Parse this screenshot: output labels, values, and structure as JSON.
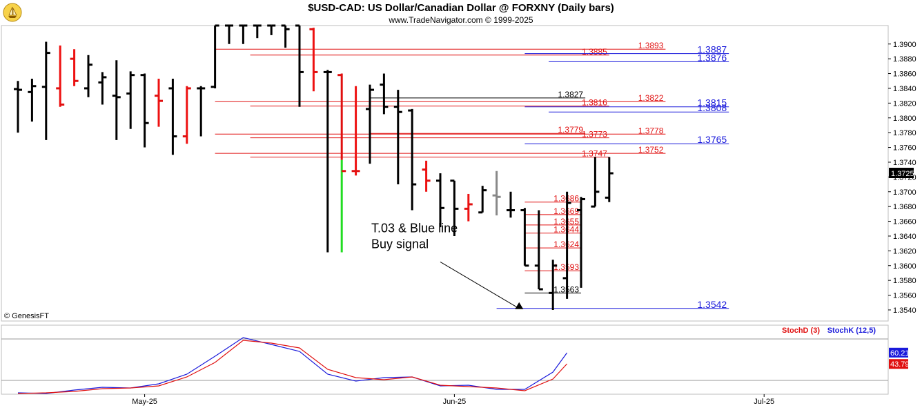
{
  "header": {
    "title": "$USD-CAD:  US Dollar/Canadian Dollar @ FORXNY  (Daily bars)",
    "subtitle": "www.TradeNavigator.com © 1999-2025"
  },
  "watermark": "© GenesisFT",
  "colors": {
    "up": "#000000",
    "down": "#ee1111",
    "blue": "#1a1adb",
    "red": "#e01010",
    "green": "#22dd22",
    "gray": "#888888"
  },
  "chart_data": [
    {
      "type": "ohlc",
      "ylim": [
        1.3525,
        1.3925
      ],
      "y_ticks": [
        "1.3540",
        "1.3560",
        "1.3580",
        "1.3600",
        "1.3620",
        "1.3640",
        "1.3660",
        "1.3680",
        "1.3700",
        "1.3720",
        "1.3740",
        "1.3760",
        "1.3780",
        "1.3800",
        "1.3820",
        "1.3840",
        "1.3860",
        "1.3880",
        "1.3900"
      ],
      "x_labels": [
        {
          "label": "May-25",
          "at": 9
        },
        {
          "label": "Jun-25",
          "at": 31
        },
        {
          "label": "Jul-25",
          "at": 53
        }
      ],
      "current_price_label": "1.3725",
      "bars": [
        {
          "o": 1.3839,
          "h": 1.385,
          "l": 1.378,
          "c": 1.3838,
          "col": "up"
        },
        {
          "o": 1.3835,
          "h": 1.3853,
          "l": 1.3795,
          "c": 1.3843,
          "col": "up"
        },
        {
          "o": 1.3842,
          "h": 1.3903,
          "l": 1.377,
          "c": 1.3888,
          "col": "up"
        },
        {
          "o": 1.384,
          "h": 1.3898,
          "l": 1.3815,
          "c": 1.3818,
          "col": "down"
        },
        {
          "o": 1.388,
          "h": 1.3893,
          "l": 1.3843,
          "c": 1.385,
          "col": "down"
        },
        {
          "o": 1.384,
          "h": 1.3885,
          "l": 1.3828,
          "c": 1.3872,
          "col": "up"
        },
        {
          "o": 1.3848,
          "h": 1.3862,
          "l": 1.3818,
          "c": 1.3855,
          "col": "up"
        },
        {
          "o": 1.383,
          "h": 1.3878,
          "l": 1.377,
          "c": 1.3828,
          "col": "up"
        },
        {
          "o": 1.3833,
          "h": 1.3863,
          "l": 1.3785,
          "c": 1.3858,
          "col": "up"
        },
        {
          "o": 1.3858,
          "h": 1.386,
          "l": 1.376,
          "c": 1.3793,
          "col": "up"
        },
        {
          "o": 1.383,
          "h": 1.3853,
          "l": 1.3788,
          "c": 1.3823,
          "col": "down"
        },
        {
          "o": 1.384,
          "h": 1.3853,
          "l": 1.375,
          "c": 1.3775,
          "col": "up"
        },
        {
          "o": 1.3775,
          "h": 1.3843,
          "l": 1.3765,
          "c": 1.384,
          "col": "down"
        },
        {
          "o": 1.384,
          "h": 1.3843,
          "l": 1.3775,
          "c": 1.384,
          "col": "up"
        },
        {
          "o": 1.3842,
          "h": 1.3925,
          "l": 1.384,
          "c": 1.3925,
          "col": "up"
        },
        {
          "o": 1.3925,
          "h": 1.3925,
          "l": 1.39,
          "c": 1.3925,
          "col": "up"
        },
        {
          "o": 1.3925,
          "h": 1.3925,
          "l": 1.39,
          "c": 1.3925,
          "col": "up"
        },
        {
          "o": 1.3925,
          "h": 1.3925,
          "l": 1.3908,
          "c": 1.3925,
          "col": "up"
        },
        {
          "o": 1.3925,
          "h": 1.3925,
          "l": 1.3912,
          "c": 1.3925,
          "col": "up"
        },
        {
          "o": 1.3925,
          "h": 1.3925,
          "l": 1.3895,
          "c": 1.392,
          "col": "up"
        },
        {
          "o": 1.3925,
          "h": 1.3925,
          "l": 1.3815,
          "c": 1.3862,
          "col": "up"
        },
        {
          "o": 1.392,
          "h": 1.3922,
          "l": 1.3836,
          "c": 1.3862,
          "col": "down"
        },
        {
          "o": 1.3862,
          "h": 1.3865,
          "l": 1.3618,
          "c": 1.3862,
          "col": "up"
        },
        {
          "o": 1.3858,
          "h": 1.386,
          "l": 1.3618,
          "c": 1.3728,
          "col": "green_red"
        },
        {
          "o": 1.3728,
          "h": 1.3843,
          "l": 1.3722,
          "c": 1.3728,
          "col": "down"
        },
        {
          "o": 1.3812,
          "h": 1.3845,
          "l": 1.3738,
          "c": 1.3838,
          "col": "up"
        },
        {
          "o": 1.3845,
          "h": 1.386,
          "l": 1.3805,
          "c": 1.3815,
          "col": "up"
        },
        {
          "o": 1.3815,
          "h": 1.3838,
          "l": 1.371,
          "c": 1.3808,
          "col": "up"
        },
        {
          "o": 1.381,
          "h": 1.3812,
          "l": 1.3675,
          "c": 1.371,
          "col": "up"
        },
        {
          "o": 1.373,
          "h": 1.3742,
          "l": 1.37,
          "c": 1.3715,
          "col": "down"
        },
        {
          "o": 1.3715,
          "h": 1.3725,
          "l": 1.3652,
          "c": 1.3678,
          "col": "up"
        },
        {
          "o": 1.3715,
          "h": 1.3715,
          "l": 1.364,
          "c": 1.3677,
          "col": "up"
        },
        {
          "o": 1.3677,
          "h": 1.3697,
          "l": 1.366,
          "c": 1.3683,
          "col": "down"
        },
        {
          "o": 1.3672,
          "h": 1.3708,
          "l": 1.3672,
          "c": 1.3702,
          "col": "up"
        },
        {
          "o": 1.3695,
          "h": 1.3728,
          "l": 1.3668,
          "c": 1.3693,
          "col": "gray"
        },
        {
          "o": 1.3675,
          "h": 1.37,
          "l": 1.3665,
          "c": 1.3675,
          "col": "up"
        },
        {
          "o": 1.3675,
          "h": 1.3678,
          "l": 1.36,
          "c": 1.36,
          "col": "up"
        },
        {
          "o": 1.36,
          "h": 1.3675,
          "l": 1.3568,
          "c": 1.3568,
          "col": "up"
        },
        {
          "o": 1.3563,
          "h": 1.3608,
          "l": 1.354,
          "c": 1.36,
          "col": "up"
        },
        {
          "o": 1.3583,
          "h": 1.37,
          "l": 1.3555,
          "c": 1.3685,
          "col": "up"
        },
        {
          "o": 1.3675,
          "h": 1.3693,
          "l": 1.357,
          "c": 1.369,
          "col": "up"
        },
        {
          "o": 1.368,
          "h": 1.3747,
          "l": 1.368,
          "c": 1.37,
          "col": "up"
        },
        {
          "o": 1.3692,
          "h": 1.3747,
          "l": 1.3686,
          "c": 1.3725,
          "col": "up"
        }
      ],
      "levels": [
        {
          "label": "1.3893",
          "y": 1.3893,
          "color": "red",
          "x0": 14,
          "x1": 46,
          "size": 12
        },
        {
          "label": "1.3885",
          "y": 1.3885,
          "color": "red",
          "x0": 16.5,
          "x1": 42,
          "size": 12
        },
        {
          "label": "1.3887",
          "y": 1.3887,
          "color": "blue",
          "x0": 36,
          "x1": 50.5,
          "size": 14
        },
        {
          "label": "1.3876",
          "y": 1.3876,
          "color": "blue",
          "x0": 37.7,
          "x1": 50.5,
          "size": 14
        },
        {
          "label": "1.3827",
          "y": 1.3827,
          "color": "black",
          "x0": 25,
          "x1": 40.3,
          "size": 12
        },
        {
          "label": "1.3822",
          "y": 1.3822,
          "color": "red",
          "x0": 14,
          "x1": 46,
          "size": 12
        },
        {
          "label": "1.3816",
          "y": 1.3816,
          "color": "red",
          "x0": 16.5,
          "x1": 42,
          "size": 12
        },
        {
          "label": "1.3815",
          "y": 1.3815,
          "color": "blue",
          "x0": 36,
          "x1": 50.5,
          "size": 14
        },
        {
          "label": "1.3808",
          "y": 1.3808,
          "color": "blue",
          "x0": 37.7,
          "x1": 50.5,
          "size": 14
        },
        {
          "label": "1.3779",
          "y": 1.3779,
          "color": "red",
          "x0": 25,
          "x1": 40.3,
          "size": 12
        },
        {
          "label": "1.3778",
          "y": 1.3778,
          "color": "red",
          "x0": 14,
          "x1": 46,
          "size": 12
        },
        {
          "label": "1.3773",
          "y": 1.3773,
          "color": "red",
          "x0": 16.5,
          "x1": 42,
          "size": 12
        },
        {
          "label": "1.3765",
          "y": 1.3765,
          "color": "blue",
          "x0": 36,
          "x1": 50.5,
          "size": 14
        },
        {
          "label": "1.3752",
          "y": 1.3752,
          "color": "red",
          "x0": 14,
          "x1": 46,
          "size": 12
        },
        {
          "label": "1.3747",
          "y": 1.3747,
          "color": "red",
          "x0": 16.5,
          "x1": 42,
          "size": 12
        },
        {
          "label": "1.3686",
          "y": 1.3686,
          "color": "red",
          "x0": 36,
          "x1": 40,
          "size": 12
        },
        {
          "label": "1.3669",
          "y": 1.3669,
          "color": "red",
          "x0": 36,
          "x1": 40,
          "size": 12
        },
        {
          "label": "1.3655",
          "y": 1.3655,
          "color": "red",
          "x0": 36,
          "x1": 40,
          "size": 12
        },
        {
          "label": "1.3644",
          "y": 1.3644,
          "color": "red",
          "x0": 36,
          "x1": 40,
          "size": 12
        },
        {
          "label": "1.3624",
          "y": 1.3624,
          "color": "red",
          "x0": 36,
          "x1": 40,
          "size": 12
        },
        {
          "label": "1.3593",
          "y": 1.3593,
          "color": "red",
          "x0": 36,
          "x1": 40,
          "size": 12
        },
        {
          "label": "1.3563",
          "y": 1.3563,
          "color": "black",
          "x0": 36,
          "x1": 40,
          "size": 12
        },
        {
          "label": "1.3542",
          "y": 1.3542,
          "color": "blue",
          "x0": 34,
          "x1": 50.5,
          "size": 14
        }
      ],
      "annotation": {
        "lines": [
          "T.03 & Blue line",
          "Buy signal"
        ],
        "text_x": 25.1,
        "text_y": 1.3645,
        "arrow_from": [
          30,
          1.3605
        ],
        "arrow_to": [
          35.6,
          1.3542
        ]
      }
    },
    {
      "type": "line",
      "legend": [
        {
          "name": "StochD (3)",
          "color": "red"
        },
        {
          "name": "StochK (12,5)",
          "color": "blue"
        }
      ],
      "ylim": [
        0,
        100
      ],
      "value_labels": [
        {
          "label": "60.21",
          "series": "StochK (12,5)",
          "y": 60.21
        },
        {
          "label": "43.79",
          "series": "StochD (3)",
          "y": 43.79
        }
      ],
      "series": [
        {
          "name": "StochK (12,5)",
          "color": "blue",
          "x": [
            0,
            2,
            4,
            6,
            8,
            10,
            12,
            14,
            16,
            18,
            20,
            22,
            24,
            26,
            28,
            30,
            32,
            34,
            36,
            38,
            39
          ],
          "y": [
            2,
            1,
            6,
            10,
            9,
            15,
            29,
            55,
            82,
            72,
            62,
            29,
            19,
            24,
            25,
            12,
            13,
            7,
            7,
            32,
            60
          ]
        },
        {
          "name": "StochD (3)",
          "color": "red",
          "x": [
            0,
            2,
            4,
            6,
            8,
            10,
            12,
            14,
            16,
            18,
            20,
            22,
            24,
            26,
            28,
            30,
            32,
            34,
            36,
            38,
            39
          ],
          "y": [
            1,
            2,
            4,
            8,
            9,
            12,
            25,
            46,
            78,
            74,
            67,
            36,
            24,
            21,
            25,
            13,
            11,
            9,
            5,
            22,
            44
          ]
        }
      ]
    }
  ]
}
